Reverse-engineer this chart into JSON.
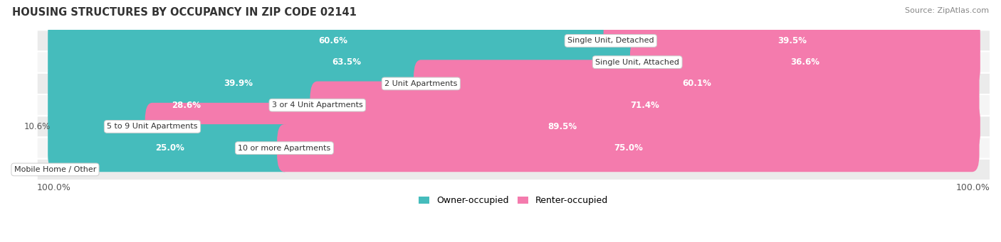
{
  "title": "HOUSING STRUCTURES BY OCCUPANCY IN ZIP CODE 02141",
  "source": "Source: ZipAtlas.com",
  "categories": [
    "Single Unit, Detached",
    "Single Unit, Attached",
    "2 Unit Apartments",
    "3 or 4 Unit Apartments",
    "5 to 9 Unit Apartments",
    "10 or more Apartments",
    "Mobile Home / Other"
  ],
  "owner_pct": [
    60.6,
    63.5,
    39.9,
    28.6,
    10.6,
    25.0,
    0.0
  ],
  "renter_pct": [
    39.5,
    36.6,
    60.1,
    71.4,
    89.5,
    75.0,
    0.0
  ],
  "owner_color": "#45BCBC",
  "renter_color": "#F47BAD",
  "row_colors": [
    "#EBEBEB",
    "#F5F5F5"
  ],
  "bar_height": 0.62,
  "title_fontsize": 10.5,
  "label_fontsize": 8.5,
  "legend_fontsize": 9,
  "source_fontsize": 8,
  "category_fontsize": 8.0,
  "total_width": 100.0,
  "label_threshold": 15.0
}
